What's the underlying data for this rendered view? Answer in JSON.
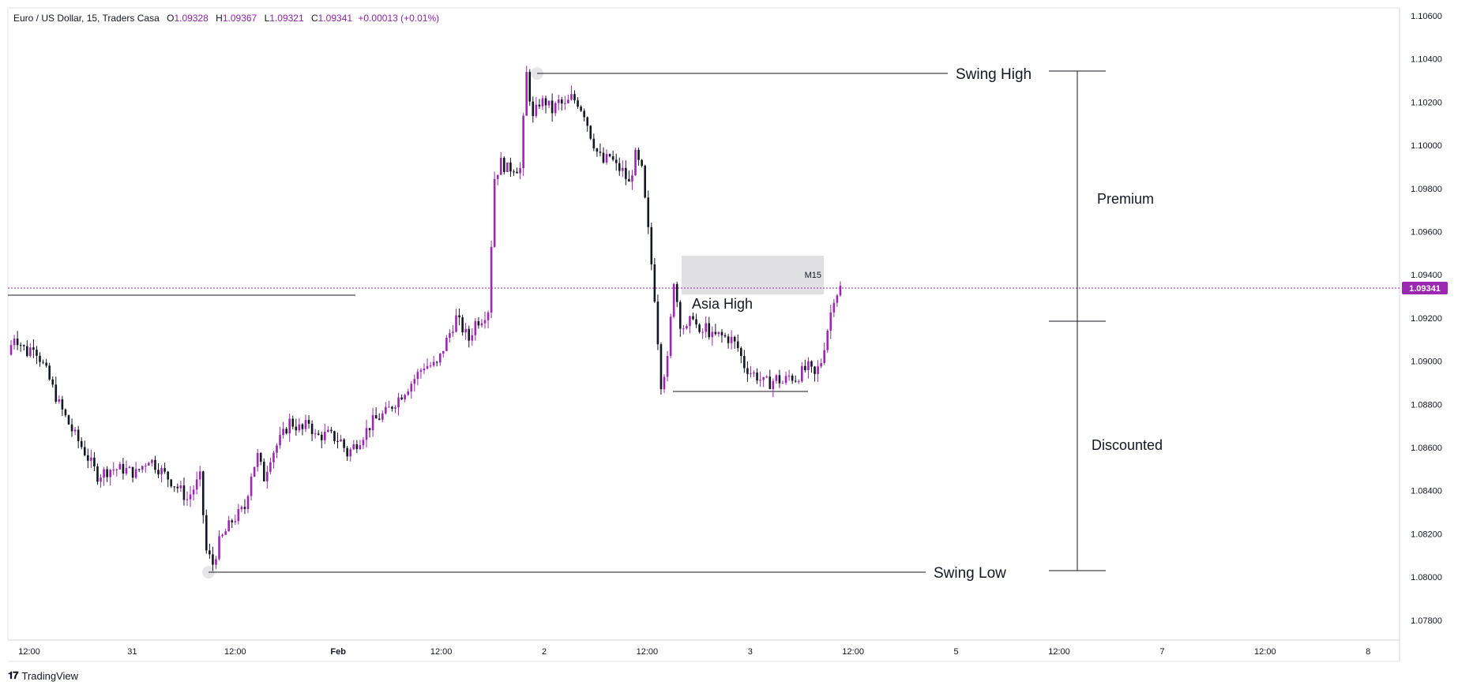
{
  "header": {
    "symbol": "Euro / US Dollar, 15, Traders Casa",
    "open_label": "O",
    "open": "1.09328",
    "high_label": "H",
    "high": "1.09367",
    "low_label": "L",
    "low": "1.09321",
    "close_label": "C",
    "close": "1.09341",
    "change": "+0.00013 (+0.01%)"
  },
  "brand": {
    "name": "TradingView",
    "logo_icon": "tradingview-logo-icon"
  },
  "colors": {
    "bull": "#9c27b0",
    "bear": "#131722",
    "price_line": "#9c27b0",
    "zone_fill": "#e0e0e3",
    "axis_text": "#131722"
  },
  "chart_data": {
    "type": "candlestick",
    "symbol": "EURUSD",
    "timeframe": "15",
    "y_axis": {
      "ylim": [
        1.077,
        1.107
      ],
      "ticks": [
        "1.10600",
        "1.10400",
        "1.10200",
        "1.10000",
        "1.09800",
        "1.09600",
        "1.09400",
        "1.09200",
        "1.09000",
        "1.08800",
        "1.08600",
        "1.08400",
        "1.08200",
        "1.08000",
        "1.07800"
      ]
    },
    "current_price": "1.09341",
    "x_axis": {
      "labels": [
        "12:00",
        "31",
        "12:00",
        "Feb",
        "12:00",
        "2",
        "12:00",
        "3",
        "12:00",
        "5",
        "12:00",
        "7",
        "12:00",
        "8"
      ],
      "bold_labels": [
        "Feb"
      ]
    },
    "price_path": [
      [
        0,
        1.0903
      ],
      [
        1,
        1.0912
      ],
      [
        3,
        1.0904
      ],
      [
        4,
        1.0908
      ],
      [
        6,
        1.0895
      ],
      [
        8,
        1.088
      ],
      [
        10,
        1.0868
      ],
      [
        12,
        1.0858
      ],
      [
        14,
        1.0847
      ],
      [
        16,
        1.085
      ],
      [
        18,
        1.085
      ],
      [
        20,
        1.0848
      ],
      [
        22,
        1.0855
      ],
      [
        23,
        1.0852
      ],
      [
        25,
        1.0846
      ],
      [
        27,
        1.084
      ],
      [
        28,
        1.0836
      ],
      [
        30,
        1.0846
      ],
      [
        31,
        1.0812
      ],
      [
        32,
        1.0806
      ],
      [
        33,
        1.0816
      ],
      [
        35,
        1.0826
      ],
      [
        37,
        1.0832
      ],
      [
        38,
        1.0848
      ],
      [
        39,
        1.0856
      ],
      [
        40,
        1.0846
      ],
      [
        41,
        1.0856
      ],
      [
        43,
        1.0866
      ],
      [
        44,
        1.0872
      ],
      [
        46,
        1.0868
      ],
      [
        47,
        1.0872
      ],
      [
        48,
        1.0865
      ],
      [
        50,
        1.0866
      ],
      [
        52,
        1.0863
      ],
      [
        53,
        1.0857
      ],
      [
        55,
        1.0864
      ],
      [
        57,
        1.0872
      ],
      [
        59,
        1.0876
      ],
      [
        61,
        1.0883
      ],
      [
        63,
        1.089
      ],
      [
        65,
        1.0898
      ],
      [
        67,
        1.0898
      ],
      [
        68,
        1.0906
      ],
      [
        70,
        1.092
      ],
      [
        71,
        1.0915
      ],
      [
        72,
        1.091
      ],
      [
        73,
        1.0918
      ],
      [
        74,
        1.092
      ],
      [
        75,
        1.0924
      ],
      [
        76,
        1.0985
      ],
      [
        77,
        1.0992
      ],
      [
        78,
        1.0989
      ],
      [
        79,
        1.099
      ],
      [
        80,
        1.0989
      ],
      [
        81,
        1.1033
      ],
      [
        82,
        1.1012
      ],
      [
        83,
        1.102
      ],
      [
        84,
        1.102
      ],
      [
        85,
        1.1016
      ],
      [
        86,
        1.102
      ],
      [
        87,
        1.1018
      ],
      [
        88,
        1.1022
      ],
      [
        89,
        1.102
      ],
      [
        90,
        1.1015
      ],
      [
        91,
        1.1005
      ],
      [
        92,
        1.0997
      ],
      [
        93,
        1.0992
      ],
      [
        94,
        1.0995
      ],
      [
        95,
        1.099
      ],
      [
        96,
        1.0988
      ],
      [
        97,
        1.0982
      ],
      [
        98,
        1.0995
      ],
      [
        99,
        1.0988
      ],
      [
        100,
        1.096
      ],
      [
        101,
        1.093
      ],
      [
        102,
        1.089
      ],
      [
        103,
        1.09
      ],
      [
        104,
        1.0938
      ],
      [
        105,
        1.0918
      ],
      [
        106,
        1.0914
      ],
      [
        107,
        1.0922
      ],
      [
        108,
        1.0911
      ],
      [
        109,
        1.0916
      ],
      [
        110,
        1.0911
      ],
      [
        111,
        1.0912
      ],
      [
        112,
        1.0911
      ],
      [
        113,
        1.091
      ],
      [
        114,
        1.0906
      ],
      [
        115,
        1.0898
      ],
      [
        116,
        1.0895
      ],
      [
        117,
        1.0893
      ],
      [
        118,
        1.089
      ],
      [
        119,
        1.089
      ],
      [
        120,
        1.0892
      ],
      [
        121,
        1.089
      ],
      [
        122,
        1.0893
      ],
      [
        123,
        1.0892
      ],
      [
        124,
        1.0895
      ],
      [
        125,
        1.0897
      ],
      [
        126,
        1.0893
      ],
      [
        127,
        1.09
      ],
      [
        128,
        1.0915
      ],
      [
        129,
        1.093
      ],
      [
        130,
        1.0934
      ]
    ]
  },
  "annotations": {
    "swing_high": "Swing High",
    "swing_low": "Swing Low",
    "premium": "Premium",
    "discounted": "Discounted",
    "asia_high": "Asia High",
    "zone_label": "M15"
  }
}
